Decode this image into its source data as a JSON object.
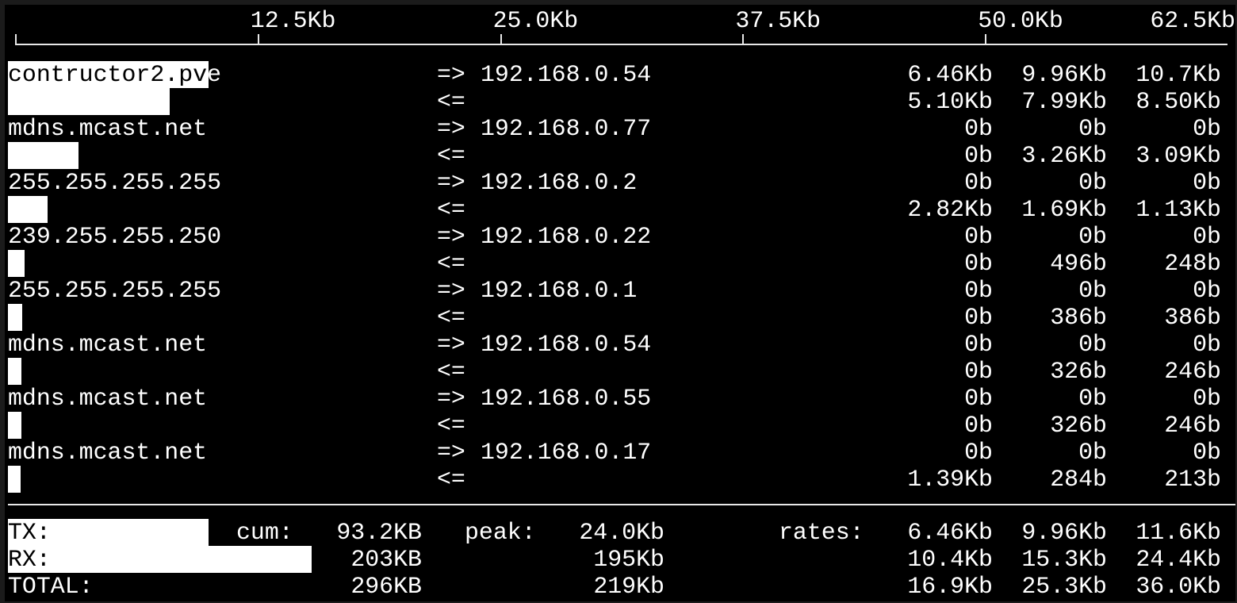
{
  "scale": {
    "max_kb": 62.5,
    "ticks": [
      "12.5Kb",
      "25.0Kb",
      "37.5Kb",
      "50.0Kb",
      "62.5Kb"
    ]
  },
  "flows": [
    {
      "host": "contructor2.pve",
      "dest": "192.168.0.54",
      "tx": [
        "6.46Kb",
        "9.96Kb",
        "10.7Kb"
      ],
      "rx": [
        "5.10Kb",
        "7.99Kb",
        "8.50Kb"
      ]
    },
    {
      "host": "mdns.mcast.net",
      "dest": "192.168.0.77",
      "tx": [
        "0b",
        "0b",
        "0b"
      ],
      "rx": [
        "0b",
        "3.26Kb",
        "3.09Kb"
      ]
    },
    {
      "host": "255.255.255.255",
      "dest": "192.168.0.2",
      "tx": [
        "0b",
        "0b",
        "0b"
      ],
      "rx": [
        "2.82Kb",
        "1.69Kb",
        "1.13Kb"
      ]
    },
    {
      "host": "239.255.255.250",
      "dest": "192.168.0.22",
      "tx": [
        "0b",
        "0b",
        "0b"
      ],
      "rx": [
        "0b",
        "496b",
        "248b"
      ]
    },
    {
      "host": "255.255.255.255",
      "dest": "192.168.0.1",
      "tx": [
        "0b",
        "0b",
        "0b"
      ],
      "rx": [
        "0b",
        "386b",
        "386b"
      ]
    },
    {
      "host": "mdns.mcast.net",
      "dest": "192.168.0.54",
      "tx": [
        "0b",
        "0b",
        "0b"
      ],
      "rx": [
        "0b",
        "326b",
        "246b"
      ]
    },
    {
      "host": "mdns.mcast.net",
      "dest": "192.168.0.55",
      "tx": [
        "0b",
        "0b",
        "0b"
      ],
      "rx": [
        "0b",
        "326b",
        "246b"
      ]
    },
    {
      "host": "mdns.mcast.net",
      "dest": "192.168.0.17",
      "tx": [
        "0b",
        "0b",
        "0b"
      ],
      "rx": [
        "1.39Kb",
        "284b",
        "213b"
      ]
    }
  ],
  "arrows": {
    "out": "=>",
    "in": "<="
  },
  "totals": {
    "cum_label": "cum:",
    "peak_label": "peak:",
    "rates_label": "rates:",
    "rows": [
      {
        "label": "TX:",
        "cum": "93.2KB",
        "peak": "24.0Kb",
        "rates": [
          "6.46Kb",
          "9.96Kb",
          "11.6Kb"
        ]
      },
      {
        "label": "RX:",
        "cum": "203KB",
        "peak": "195Kb",
        "rates": [
          "10.4Kb",
          "15.3Kb",
          "24.4Kb"
        ]
      },
      {
        "label": "TOTAL:",
        "cum": "296KB",
        "peak": "219Kb",
        "rates": [
          "16.9Kb",
          "25.3Kb",
          "36.0Kb"
        ]
      }
    ]
  }
}
